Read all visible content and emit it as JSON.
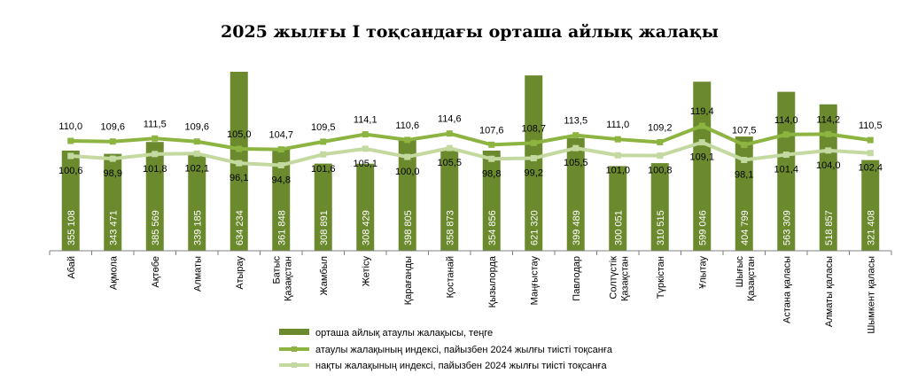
{
  "chart_data": {
    "type": "bar",
    "title": "2025 жылғы I тоқсандағы орташа айлық жалақы",
    "categories": [
      [
        "Абай"
      ],
      [
        "Ақмола"
      ],
      [
        "Ақтөбе"
      ],
      [
        "Алматы"
      ],
      [
        "Атырау"
      ],
      [
        "Батыс",
        "Қазақстан"
      ],
      [
        "Жамбыл"
      ],
      [
        "Жетісу"
      ],
      [
        "Қарағанды"
      ],
      [
        "Қостанай"
      ],
      [
        "Қызылорда"
      ],
      [
        "Маңғыстау"
      ],
      [
        "Павлодар"
      ],
      [
        "Солтүстік",
        "Қазақстан"
      ],
      [
        "Түркістан"
      ],
      [
        "Ұлытау"
      ],
      [
        "Шығыс",
        "Қазақстан"
      ],
      [
        "Астана қаласы"
      ],
      [
        "Алматы қаласы"
      ],
      [
        "Шымкент қаласы"
      ]
    ],
    "series": [
      {
        "name": "орташа айлық атаулы жалақысы, теңге",
        "type": "bar",
        "color": "#6b8a2e",
        "values": [
          355108,
          343471,
          385569,
          339185,
          634234,
          361848,
          308891,
          308429,
          398805,
          358873,
          354856,
          621320,
          399489,
          300051,
          310515,
          599046,
          404799,
          563309,
          518857,
          321408
        ],
        "labels": [
          "355 108",
          "343 471",
          "385 569",
          "339 185",
          "634 234",
          "361 848",
          "308 891",
          "308 429",
          "398 805",
          "358 873",
          "354 856",
          "621 320",
          "399 489",
          "300 051",
          "310 515",
          "599 046",
          "404 799",
          "563 309",
          "518 857",
          "321 408"
        ]
      },
      {
        "name": "атаулы жалақының индексі, пайызбен 2024 жылғы тиісті тоқсанға",
        "type": "line",
        "color": "#8db440",
        "values": [
          110.0,
          109.6,
          111.5,
          109.6,
          105.0,
          104.7,
          109.5,
          114.1,
          110.6,
          114.6,
          107.6,
          108.7,
          113.5,
          111.0,
          109.2,
          119.4,
          107.5,
          114.0,
          114.2,
          110.5
        ],
        "labels": [
          "110,0",
          "109,6",
          "111,5",
          "109,6",
          "105,0",
          "104,7",
          "109,5",
          "114,1",
          "110,6",
          "114,6",
          "107,6",
          "108,7",
          "113,5",
          "111,0",
          "109,2",
          "119,4",
          "107,5",
          "114,0",
          "114,2",
          "110,5"
        ]
      },
      {
        "name": "нақты жалақының индексі, пайызбен 2024 жылғы тиісті тоқсанға",
        "type": "line",
        "color": "#c4d9a0",
        "values": [
          100.6,
          98.9,
          101.8,
          102.1,
          96.1,
          94.8,
          101.6,
          105.1,
          100.0,
          105.5,
          98.8,
          99.2,
          105.5,
          101.0,
          100.8,
          109.1,
          98.1,
          101.4,
          104.0,
          102.4
        ],
        "labels": [
          "100,6",
          "98,9",
          "101,8",
          "102,1",
          "96,1",
          "94,8",
          "101,6",
          "105,1",
          "100,0",
          "105,5",
          "98,8",
          "99,2",
          "105,5",
          "101,0",
          "100,8",
          "109,1",
          "98,1",
          "101,4",
          "104,0",
          "102,4"
        ]
      }
    ],
    "legend_position": "bottom",
    "grid": false
  }
}
